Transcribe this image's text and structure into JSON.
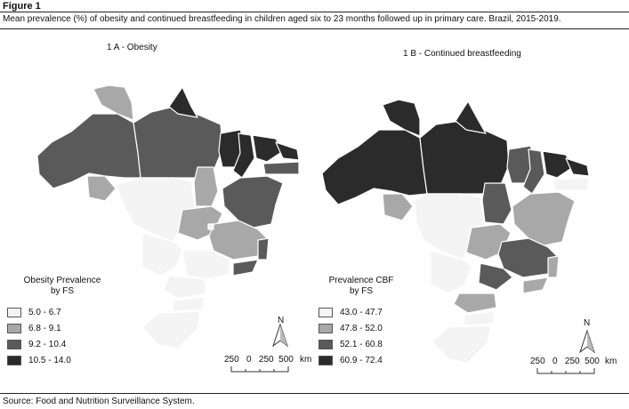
{
  "figure": {
    "label": "Figure 1",
    "caption": "Mean prevalence (%) of obesity and continued breastfeeding in children aged six to 23 months followed up in primary care. Brazil, 2015-2019.",
    "source": "Source: Food and Nutrition Surveillance System."
  },
  "panel_a": {
    "title": "1 A - Obesity",
    "legend": {
      "title_line1": "Obesity Prevalence",
      "title_line2": "by FS",
      "classes": [
        {
          "label": "5.0 - 6.7",
          "color": "#f4f4f4"
        },
        {
          "label": "6.8 - 9.1",
          "color": "#a8a8a8"
        },
        {
          "label": "9.2 - 10.4",
          "color": "#5a5a5a"
        },
        {
          "label": "10.5 - 14.0",
          "color": "#2b2b2b"
        }
      ]
    },
    "north": "N",
    "scale": {
      "ticks": "250   0   250  500",
      "unit": "km"
    }
  },
  "panel_b": {
    "title": "1 B - Continued breastfeeding",
    "legend": {
      "title_line1": "Prevalence CBF",
      "title_line2": "by FS",
      "classes": [
        {
          "label": "43.0 - 47.7",
          "color": "#f4f4f4"
        },
        {
          "label": "47.8 - 52.0",
          "color": "#a8a8a8"
        },
        {
          "label": "52.1 - 60.8",
          "color": "#5a5a5a"
        },
        {
          "label": "60.9 - 72.4",
          "color": "#2b2b2b"
        }
      ]
    },
    "north": "N",
    "scale": {
      "ticks": "250   0   250  500",
      "unit": "km"
    }
  }
}
